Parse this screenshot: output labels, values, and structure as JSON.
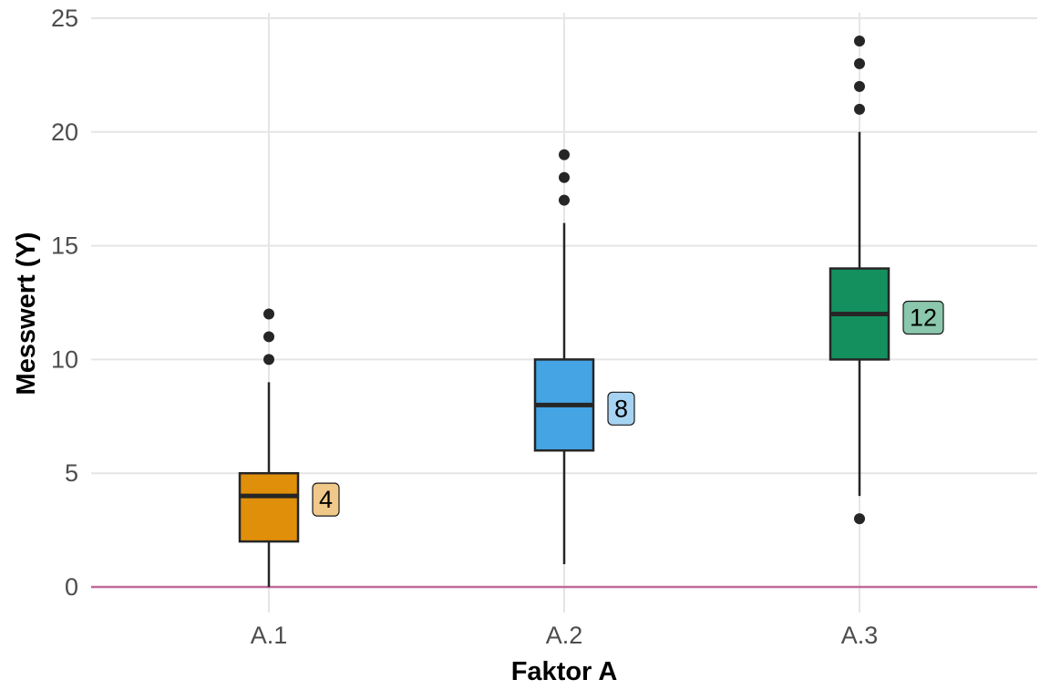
{
  "chart_data": {
    "type": "boxplot",
    "xlabel": "Faktor A",
    "ylabel": "Messwert (Y)",
    "ylim": [
      0,
      25
    ],
    "yticks": [
      0,
      5,
      10,
      15,
      20,
      25
    ],
    "grid": true,
    "legend": "none",
    "reference_line": {
      "y": 0,
      "color": "#c0699a"
    },
    "categories": [
      "A.1",
      "A.2",
      "A.3"
    ],
    "series": [
      {
        "category": "A.1",
        "color": "#e08f0a",
        "label_color": "#f0c98a",
        "min": 0,
        "q1": 2,
        "median": 4,
        "q3": 5,
        "max": 9,
        "outliers": [
          10,
          11,
          12
        ],
        "median_label": "4"
      },
      {
        "category": "A.2",
        "color": "#44a4e4",
        "label_color": "#a6d3f2",
        "min": 1,
        "q1": 6,
        "median": 8,
        "q3": 10,
        "max": 16,
        "outliers": [
          17,
          18,
          19
        ],
        "median_label": "8"
      },
      {
        "category": "A.3",
        "color": "#14905f",
        "label_color": "#8ac7ad",
        "min": 4,
        "q1": 10,
        "median": 12,
        "q3": 14,
        "max": 20,
        "outliers": [
          3,
          21,
          22,
          23,
          24
        ],
        "median_label": "12"
      }
    ]
  }
}
